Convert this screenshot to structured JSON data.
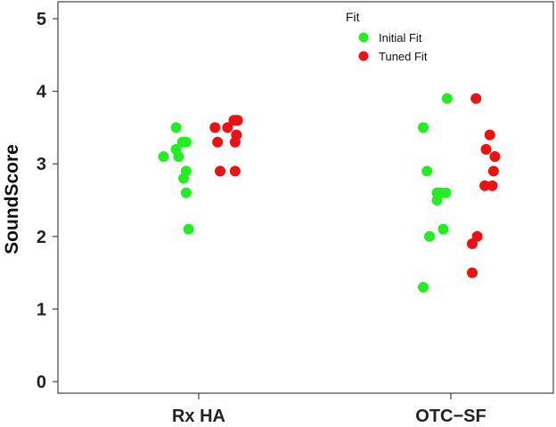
{
  "chart_data": {
    "type": "scatter",
    "title": "",
    "xlabel": "",
    "ylabel": "SoundScore",
    "ylim": [
      0,
      5
    ],
    "yticks": [
      "0",
      "1",
      "2",
      "3",
      "4",
      "5"
    ],
    "categories": [
      "Rx HA",
      "OTC−SF"
    ],
    "legend": {
      "title": "Fit",
      "position": "top-right",
      "entries": [
        {
          "name": "Initial Fit",
          "color": "#22ee22"
        },
        {
          "name": "Tuned Fit",
          "color": "#ee1111"
        }
      ]
    },
    "series": [
      {
        "name": "Initial Fit",
        "color": "#22ee22",
        "points": [
          {
            "category": "Rx HA",
            "jitter": -0.28,
            "y": 3.1
          },
          {
            "category": "Rx HA",
            "jitter": -0.18,
            "y": 3.5
          },
          {
            "category": "Rx HA",
            "jitter": -0.18,
            "y": 3.2
          },
          {
            "category": "Rx HA",
            "jitter": -0.16,
            "y": 3.1
          },
          {
            "category": "Rx HA",
            "jitter": -0.13,
            "y": 3.3
          },
          {
            "category": "Rx HA",
            "jitter": -0.1,
            "y": 3.3
          },
          {
            "category": "Rx HA",
            "jitter": -0.1,
            "y": 2.9
          },
          {
            "category": "Rx HA",
            "jitter": -0.12,
            "y": 2.8
          },
          {
            "category": "Rx HA",
            "jitter": -0.1,
            "y": 2.6
          },
          {
            "category": "Rx HA",
            "jitter": -0.08,
            "y": 2.1
          },
          {
            "category": "OTC−SF",
            "jitter": -0.22,
            "y": 3.5
          },
          {
            "category": "OTC−SF",
            "jitter": -0.19,
            "y": 2.9
          },
          {
            "category": "OTC−SF",
            "jitter": -0.17,
            "y": 2.0
          },
          {
            "category": "OTC−SF",
            "jitter": -0.11,
            "y": 2.6
          },
          {
            "category": "OTC−SF",
            "jitter": -0.11,
            "y": 2.5
          },
          {
            "category": "OTC−SF",
            "jitter": -0.08,
            "y": 2.6
          },
          {
            "category": "OTC−SF",
            "jitter": -0.04,
            "y": 2.6
          },
          {
            "category": "OTC−SF",
            "jitter": -0.06,
            "y": 2.1
          },
          {
            "category": "OTC−SF",
            "jitter": -0.03,
            "y": 3.9
          },
          {
            "category": "OTC−SF",
            "jitter": -0.22,
            "y": 1.3
          }
        ]
      },
      {
        "name": "Tuned Fit",
        "color": "#ee1111",
        "points": [
          {
            "category": "Rx HA",
            "jitter": 0.13,
            "y": 3.5
          },
          {
            "category": "Rx HA",
            "jitter": 0.15,
            "y": 3.3
          },
          {
            "category": "Rx HA",
            "jitter": 0.17,
            "y": 2.9
          },
          {
            "category": "Rx HA",
            "jitter": 0.23,
            "y": 3.5
          },
          {
            "category": "Rx HA",
            "jitter": 0.28,
            "y": 3.6
          },
          {
            "category": "Rx HA",
            "jitter": 0.3,
            "y": 3.6
          },
          {
            "category": "Rx HA",
            "jitter": 0.31,
            "y": 3.6
          },
          {
            "category": "Rx HA",
            "jitter": 0.29,
            "y": 3.3
          },
          {
            "category": "Rx HA",
            "jitter": 0.3,
            "y": 3.4
          },
          {
            "category": "Rx HA",
            "jitter": 0.29,
            "y": 2.9
          },
          {
            "category": "OTC−SF",
            "jitter": 0.17,
            "y": 1.5
          },
          {
            "category": "OTC−SF",
            "jitter": 0.17,
            "y": 1.9
          },
          {
            "category": "OTC−SF",
            "jitter": 0.21,
            "y": 2.0
          },
          {
            "category": "OTC−SF",
            "jitter": 0.2,
            "y": 3.9
          },
          {
            "category": "OTC−SF",
            "jitter": 0.27,
            "y": 2.7
          },
          {
            "category": "OTC−SF",
            "jitter": 0.28,
            "y": 3.2
          },
          {
            "category": "OTC−SF",
            "jitter": 0.31,
            "y": 3.4
          },
          {
            "category": "OTC−SF",
            "jitter": 0.33,
            "y": 2.7
          },
          {
            "category": "OTC−SF",
            "jitter": 0.34,
            "y": 2.9
          },
          {
            "category": "OTC−SF",
            "jitter": 0.35,
            "y": 3.1
          }
        ]
      }
    ]
  }
}
